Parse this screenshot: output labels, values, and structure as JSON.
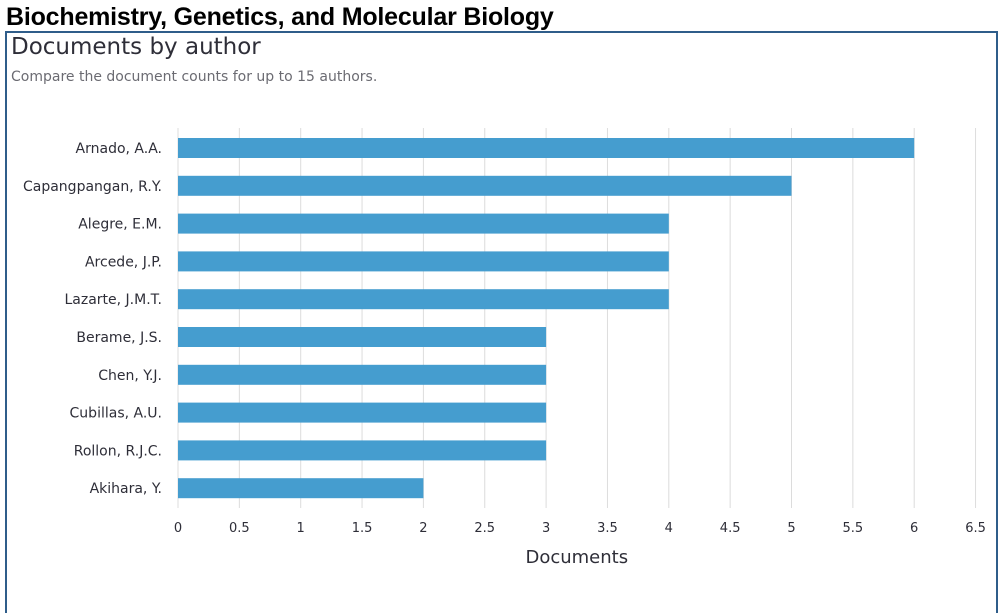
{
  "page": {
    "title": "Biochemistry, Genetics, and Molecular Biology"
  },
  "panel": {
    "title": "Documents by author",
    "subtitle": "Compare the document counts for up to 15 authors."
  },
  "colors": {
    "bar": "#459dcf",
    "grid": "#dcdcdc",
    "border": "#2f5d8a"
  },
  "chart_data": {
    "type": "bar",
    "orientation": "horizontal",
    "categories": [
      "Arnado, A.A.",
      "Capangpangan, R.Y.",
      "Alegre, E.M.",
      "Arcede, J.P.",
      "Lazarte, J.M.T.",
      "Berame, J.S.",
      "Chen, Y.J.",
      "Cubillas, A.U.",
      "Rollon, R.J.C.",
      "Akihara, Y."
    ],
    "values": [
      6,
      5,
      4,
      4,
      4,
      3,
      3,
      3,
      3,
      2
    ],
    "xlabel": "Documents",
    "xlim": [
      0,
      6.5
    ],
    "xticks": [
      "0",
      "0.5",
      "1",
      "1.5",
      "2",
      "2.5",
      "3",
      "3.5",
      "4",
      "4.5",
      "5",
      "5.5",
      "6",
      "6.5"
    ],
    "grid": true,
    "legend": "none"
  }
}
